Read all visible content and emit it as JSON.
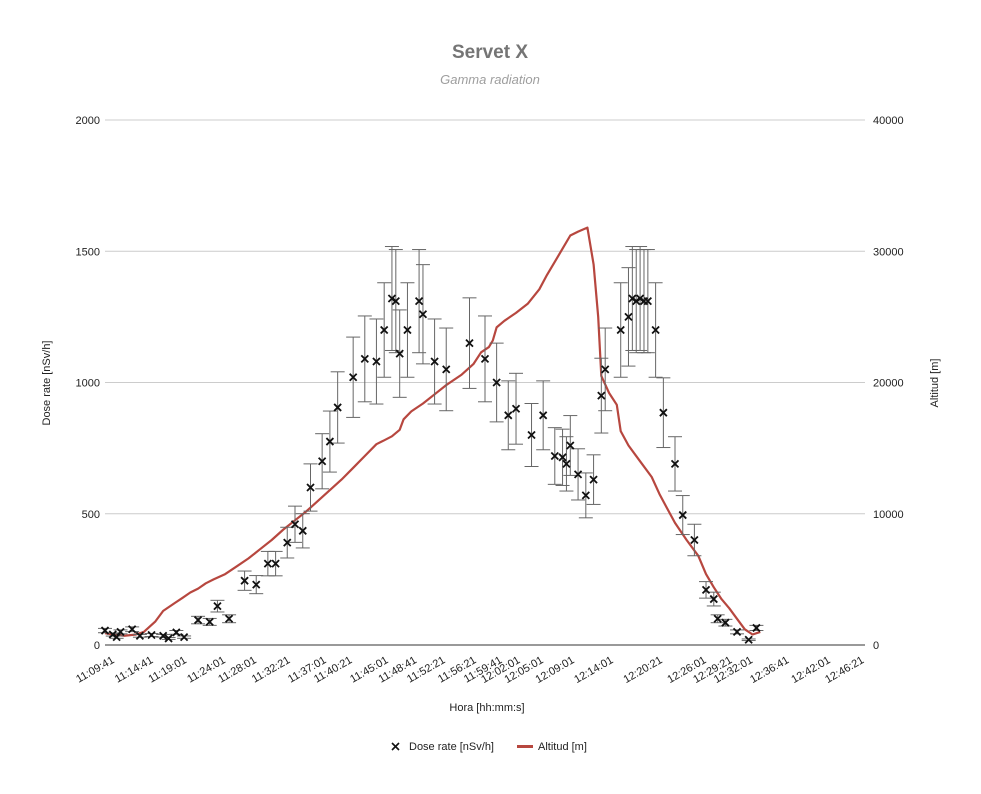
{
  "chart_data": {
    "type": "scatter+line",
    "title": "Servet X",
    "subtitle": "Gamma radiation",
    "xlabel": "Hora [hh:mm:s]",
    "ylabel_left": "Dose rate [nSv/h]",
    "ylabel_right": "Altitud [m]",
    "ylim_left": [
      0,
      2000
    ],
    "ylim_right": [
      0,
      40000
    ],
    "yticks_left": [
      "0",
      "500",
      "1000",
      "1500",
      "2000"
    ],
    "yticks_right": [
      "0",
      "10000",
      "20000",
      "30000",
      "40000"
    ],
    "xlim_minutes": [
      0,
      98
    ],
    "x_tick_labels": [
      {
        "label": "11:09:41",
        "x": 0.0
      },
      {
        "label": "11:14:41",
        "x": 5.0
      },
      {
        "label": "11:19:01",
        "x": 9.33
      },
      {
        "label": "11:24:01",
        "x": 14.33
      },
      {
        "label": "11:28:01",
        "x": 18.33
      },
      {
        "label": "11:32:21",
        "x": 22.67
      },
      {
        "label": "11:37:01",
        "x": 27.33
      },
      {
        "label": "11:40:21",
        "x": 30.67
      },
      {
        "label": "11:45:01",
        "x": 35.33
      },
      {
        "label": "11:48:41",
        "x": 39.0
      },
      {
        "label": "11:52:21",
        "x": 42.67
      },
      {
        "label": "11:56:21",
        "x": 46.67
      },
      {
        "label": "11:59:41",
        "x": 50.0
      },
      {
        "label": "12:02:01",
        "x": 52.33
      },
      {
        "label": "12:05:01",
        "x": 55.33
      },
      {
        "label": "12:09:01",
        "x": 59.33
      },
      {
        "label": "12:14:01",
        "x": 64.33
      },
      {
        "label": "12:20:21",
        "x": 70.67
      },
      {
        "label": "12:26:01",
        "x": 76.33
      },
      {
        "label": "12:29:21",
        "x": 79.67
      },
      {
        "label": "12:32:01",
        "x": 82.33
      },
      {
        "label": "12:36:41",
        "x": 87.0
      },
      {
        "label": "12:42:01",
        "x": 92.33
      },
      {
        "label": "12:46:21",
        "x": 96.67
      }
    ],
    "series": [
      {
        "name": "Dose rate [nSv/h]",
        "kind": "scatter-errorbar",
        "marker": "x",
        "color": "#111111",
        "error_fraction": 0.15,
        "points": [
          [
            0.0,
            55
          ],
          [
            1.0,
            40
          ],
          [
            1.5,
            30
          ],
          [
            2.0,
            50
          ],
          [
            3.5,
            60
          ],
          [
            4.5,
            35
          ],
          [
            6.0,
            38
          ],
          [
            7.5,
            35
          ],
          [
            8.2,
            25
          ],
          [
            9.2,
            48
          ],
          [
            10.2,
            30
          ],
          [
            12.0,
            95
          ],
          [
            13.5,
            88
          ],
          [
            14.5,
            148
          ],
          [
            16.0,
            100
          ],
          [
            18.0,
            245
          ],
          [
            19.5,
            230
          ],
          [
            21.0,
            310
          ],
          [
            22.0,
            310
          ],
          [
            23.5,
            390
          ],
          [
            24.5,
            460
          ],
          [
            25.5,
            435
          ],
          [
            26.5,
            600
          ],
          [
            28.0,
            700
          ],
          [
            29.0,
            775
          ],
          [
            30.0,
            905
          ],
          [
            32.0,
            1020
          ],
          [
            33.5,
            1090
          ],
          [
            35.0,
            1080
          ],
          [
            36.0,
            1200
          ],
          [
            37.0,
            1320
          ],
          [
            37.5,
            1310
          ],
          [
            38.0,
            1110
          ],
          [
            39.0,
            1200
          ],
          [
            40.5,
            1310
          ],
          [
            41.0,
            1260
          ],
          [
            42.5,
            1080
          ],
          [
            44.0,
            1050
          ],
          [
            47.0,
            1150
          ],
          [
            49.0,
            1090
          ],
          [
            50.5,
            1000
          ],
          [
            52.0,
            875
          ],
          [
            53.0,
            900
          ],
          [
            55.0,
            800
          ],
          [
            56.5,
            875
          ],
          [
            58.0,
            720
          ],
          [
            59.0,
            715
          ],
          [
            59.5,
            690
          ],
          [
            60.0,
            760
          ],
          [
            61.0,
            650
          ],
          [
            62.0,
            570
          ],
          [
            63.0,
            630
          ],
          [
            64.0,
            950
          ],
          [
            64.5,
            1050
          ],
          [
            66.5,
            1200
          ],
          [
            67.5,
            1250
          ],
          [
            68.0,
            1320
          ],
          [
            68.5,
            1310
          ],
          [
            69.0,
            1320
          ],
          [
            69.5,
            1310
          ],
          [
            70.0,
            1310
          ],
          [
            71.0,
            1200
          ],
          [
            72.0,
            885
          ],
          [
            73.5,
            690
          ],
          [
            74.5,
            495
          ],
          [
            76.0,
            400
          ],
          [
            77.5,
            210
          ],
          [
            78.5,
            175
          ],
          [
            79.0,
            100
          ],
          [
            80.0,
            85
          ],
          [
            81.5,
            50
          ],
          [
            83.0,
            20
          ],
          [
            84.0,
            65
          ]
        ]
      },
      {
        "name": "Altitud [m]",
        "kind": "line",
        "axis": "right",
        "color": "#b7473f",
        "points": [
          [
            0.0,
            900
          ],
          [
            1.0,
            800
          ],
          [
            2.5,
            700
          ],
          [
            4.0,
            800
          ],
          [
            5.0,
            1000
          ],
          [
            6.5,
            1800
          ],
          [
            7.5,
            2600
          ],
          [
            9.0,
            3200
          ],
          [
            10.0,
            3600
          ],
          [
            11.0,
            4000
          ],
          [
            12.0,
            4300
          ],
          [
            13.0,
            4700
          ],
          [
            14.0,
            5000
          ],
          [
            15.5,
            5400
          ],
          [
            17.0,
            6000
          ],
          [
            18.5,
            6600
          ],
          [
            20.0,
            7300
          ],
          [
            21.5,
            8000
          ],
          [
            23.0,
            8800
          ],
          [
            24.5,
            9500
          ],
          [
            26.0,
            10200
          ],
          [
            27.5,
            11000
          ],
          [
            29.0,
            11800
          ],
          [
            30.5,
            12600
          ],
          [
            32.0,
            13500
          ],
          [
            33.5,
            14400
          ],
          [
            35.0,
            15300
          ],
          [
            36.0,
            15600
          ],
          [
            37.0,
            15900
          ],
          [
            38.0,
            16400
          ],
          [
            38.5,
            17200
          ],
          [
            39.5,
            17800
          ],
          [
            41.0,
            18400
          ],
          [
            42.5,
            19100
          ],
          [
            44.0,
            19800
          ],
          [
            46.0,
            20600
          ],
          [
            47.5,
            21400
          ],
          [
            48.5,
            22300
          ],
          [
            49.5,
            22700
          ],
          [
            50.0,
            23200
          ],
          [
            50.5,
            24200
          ],
          [
            51.5,
            24700
          ],
          [
            53.0,
            25300
          ],
          [
            54.5,
            26000
          ],
          [
            56.0,
            27100
          ],
          [
            57.0,
            28200
          ],
          [
            58.0,
            29200
          ],
          [
            59.0,
            30200
          ],
          [
            60.0,
            31200
          ],
          [
            61.0,
            31500
          ],
          [
            62.2,
            31800
          ],
          [
            63.0,
            29000
          ],
          [
            63.6,
            25000
          ],
          [
            64.0,
            20500
          ],
          [
            65.0,
            19200
          ],
          [
            66.0,
            18300
          ],
          [
            66.5,
            16300
          ],
          [
            67.5,
            15200
          ],
          [
            69.0,
            14000
          ],
          [
            70.5,
            12800
          ],
          [
            71.5,
            11500
          ],
          [
            72.5,
            10400
          ],
          [
            73.5,
            9300
          ],
          [
            75.0,
            8000
          ],
          [
            76.5,
            6800
          ],
          [
            77.5,
            5400
          ],
          [
            78.5,
            4400
          ],
          [
            79.5,
            3500
          ],
          [
            80.5,
            2800
          ],
          [
            81.5,
            2000
          ],
          [
            82.5,
            1200
          ],
          [
            83.5,
            800
          ],
          [
            84.5,
            1000
          ]
        ]
      }
    ],
    "legend": {
      "position": "bottom",
      "items": [
        {
          "label": "Dose rate [nSv/h]",
          "marker": "x",
          "color": "#111111"
        },
        {
          "label": "Altitud [m]",
          "marker": "line",
          "color": "#b7473f"
        }
      ]
    },
    "grid": true
  }
}
